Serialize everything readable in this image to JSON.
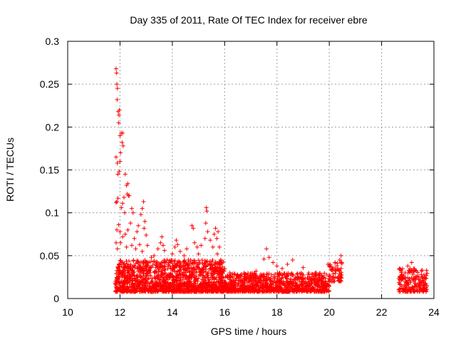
{
  "chart_data": {
    "type": "scatter",
    "title": "Day 335 of 2011, Rate Of TEC Index for receiver ebre",
    "xlabel": "GPS time / hours",
    "ylabel": "ROTI / TECUs",
    "xlim": [
      10,
      24
    ],
    "ylim": [
      0,
      0.3
    ],
    "xticks": [
      10,
      12,
      14,
      16,
      18,
      20,
      22,
      24
    ],
    "yticks": [
      0,
      0.05,
      0.1,
      0.15,
      0.2,
      0.25,
      0.3
    ],
    "ytick_labels": [
      "0",
      "0.05",
      "0.1",
      "0.15",
      "0.2",
      "0.25",
      "0.3"
    ],
    "grid": true,
    "marker": "+",
    "color": "#ff0000",
    "series": [
      {
        "name": "ROTI",
        "points": [
          [
            11.85,
            0.268
          ],
          [
            11.87,
            0.263
          ],
          [
            11.88,
            0.25
          ],
          [
            11.9,
            0.245
          ],
          [
            11.89,
            0.232
          ],
          [
            11.93,
            0.218
          ],
          [
            11.96,
            0.214
          ],
          [
            11.95,
            0.205
          ],
          [
            11.98,
            0.22
          ],
          [
            12.0,
            0.19
          ],
          [
            12.05,
            0.193
          ],
          [
            12.1,
            0.193
          ],
          [
            12.08,
            0.182
          ],
          [
            12.12,
            0.178
          ],
          [
            12.02,
            0.17
          ],
          [
            12.0,
            0.16
          ],
          [
            11.97,
            0.148
          ],
          [
            11.85,
            0.165
          ],
          [
            11.9,
            0.158
          ],
          [
            11.92,
            0.145
          ],
          [
            12.2,
            0.145
          ],
          [
            12.25,
            0.132
          ],
          [
            12.3,
            0.134
          ],
          [
            12.32,
            0.12
          ],
          [
            12.28,
            0.122
          ],
          [
            12.35,
            0.12
          ],
          [
            11.85,
            0.112
          ],
          [
            11.88,
            0.113
          ],
          [
            11.92,
            0.117
          ],
          [
            12.15,
            0.118
          ],
          [
            12.1,
            0.111
          ],
          [
            12.05,
            0.106
          ],
          [
            12.18,
            0.1
          ],
          [
            12.45,
            0.105
          ],
          [
            12.5,
            0.1
          ],
          [
            12.9,
            0.113
          ],
          [
            12.85,
            0.105
          ],
          [
            12.8,
            0.098
          ],
          [
            12.95,
            0.09
          ],
          [
            12.92,
            0.082
          ],
          [
            13.0,
            0.074
          ],
          [
            12.7,
            0.085
          ],
          [
            12.65,
            0.078
          ],
          [
            12.55,
            0.07
          ],
          [
            12.4,
            0.088
          ],
          [
            12.3,
            0.08
          ],
          [
            12.2,
            0.075
          ],
          [
            12.1,
            0.072
          ],
          [
            12.0,
            0.078
          ],
          [
            11.95,
            0.086
          ],
          [
            11.88,
            0.08
          ],
          [
            11.85,
            0.065
          ],
          [
            11.9,
            0.058
          ],
          [
            12.02,
            0.065
          ],
          [
            12.25,
            0.06
          ],
          [
            12.45,
            0.062
          ],
          [
            12.6,
            0.058
          ],
          [
            12.75,
            0.063
          ],
          [
            12.85,
            0.055
          ],
          [
            13.05,
            0.062
          ],
          [
            13.2,
            0.048
          ],
          [
            13.3,
            0.05
          ],
          [
            13.45,
            0.058
          ],
          [
            13.55,
            0.065
          ],
          [
            13.6,
            0.072
          ],
          [
            13.65,
            0.062
          ],
          [
            13.7,
            0.056
          ],
          [
            13.8,
            0.045
          ],
          [
            14.0,
            0.052
          ],
          [
            14.1,
            0.06
          ],
          [
            14.15,
            0.068
          ],
          [
            14.2,
            0.063
          ],
          [
            14.3,
            0.055
          ],
          [
            14.45,
            0.05
          ],
          [
            14.55,
            0.058
          ],
          [
            14.7,
            0.045
          ],
          [
            14.75,
            0.085
          ],
          [
            14.8,
            0.082
          ],
          [
            14.85,
            0.065
          ],
          [
            14.95,
            0.06
          ],
          [
            15.0,
            0.052
          ],
          [
            15.1,
            0.062
          ],
          [
            15.25,
            0.07
          ],
          [
            15.3,
            0.106
          ],
          [
            15.32,
            0.102
          ],
          [
            15.28,
            0.088
          ],
          [
            15.35,
            0.078
          ],
          [
            15.45,
            0.068
          ],
          [
            15.55,
            0.06
          ],
          [
            15.6,
            0.075
          ],
          [
            15.65,
            0.082
          ],
          [
            15.7,
            0.07
          ],
          [
            15.75,
            0.078
          ],
          [
            15.8,
            0.06
          ],
          [
            15.72,
            0.052
          ],
          [
            15.85,
            0.045
          ],
          [
            16.0,
            0.035
          ],
          [
            16.2,
            0.03
          ],
          [
            16.5,
            0.026
          ],
          [
            16.8,
            0.028
          ],
          [
            17.2,
            0.032
          ],
          [
            17.5,
            0.046
          ],
          [
            17.6,
            0.058
          ],
          [
            17.7,
            0.048
          ],
          [
            17.85,
            0.042
          ],
          [
            18.0,
            0.038
          ],
          [
            18.2,
            0.035
          ],
          [
            18.4,
            0.04
          ],
          [
            18.6,
            0.045
          ],
          [
            19.0,
            0.036
          ],
          [
            19.5,
            0.03
          ],
          [
            19.95,
            0.04
          ],
          [
            20.0,
            0.038
          ],
          [
            20.1,
            0.033
          ],
          [
            20.4,
            0.045
          ],
          [
            20.45,
            0.05
          ],
          [
            20.48,
            0.042
          ],
          [
            22.7,
            0.026
          ],
          [
            22.8,
            0.024
          ],
          [
            22.9,
            0.03
          ],
          [
            23.0,
            0.038
          ],
          [
            23.1,
            0.032
          ],
          [
            23.15,
            0.042
          ],
          [
            23.2,
            0.028
          ],
          [
            23.3,
            0.022
          ],
          [
            23.45,
            0.02
          ],
          [
            23.55,
            0.025
          ],
          [
            23.6,
            0.018
          ],
          [
            23.65,
            0.012
          ],
          [
            23.7,
            0.008
          ],
          [
            23.72,
            0.015
          ]
        ]
      }
    ],
    "dense_band": {
      "description": "dense cluster of low ROTI samples",
      "segments": [
        {
          "x_start": 11.82,
          "x_end": 16.0,
          "y_min": 0.008,
          "y_max": 0.045,
          "count": 1400
        },
        {
          "x_start": 16.0,
          "x_end": 20.0,
          "y_min": 0.008,
          "y_max": 0.03,
          "count": 900
        },
        {
          "x_start": 20.0,
          "x_end": 20.5,
          "y_min": 0.02,
          "y_max": 0.045,
          "count": 60
        },
        {
          "x_start": 22.65,
          "x_end": 23.75,
          "y_min": 0.008,
          "y_max": 0.035,
          "count": 180
        }
      ]
    }
  }
}
